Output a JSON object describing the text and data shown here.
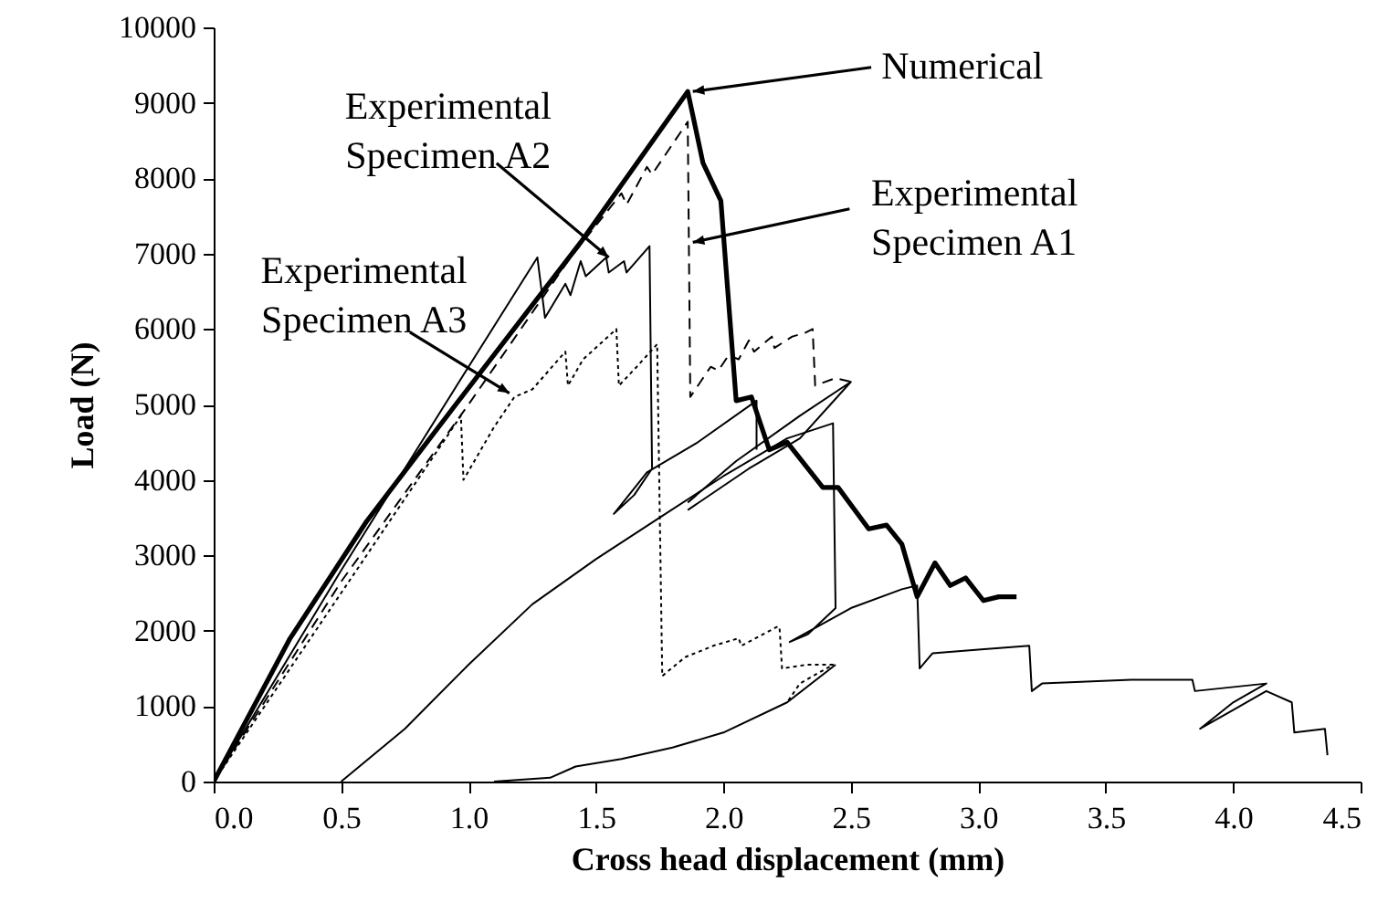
{
  "chart_data": {
    "type": "line",
    "xlabel": "Cross head displacement (mm)",
    "ylabel": "Load (N)",
    "xlim": [
      0,
      4.5
    ],
    "ylim": [
      0,
      10000
    ],
    "xticks": [
      {
        "value": 0,
        "label": "0.0"
      },
      {
        "value": 0.5,
        "label": "0.5"
      },
      {
        "value": 1,
        "label": "1.0"
      },
      {
        "value": 1.5,
        "label": "1.5"
      },
      {
        "value": 2,
        "label": "2.0"
      },
      {
        "value": 2.5,
        "label": "2.5"
      },
      {
        "value": 3,
        "label": "3.0"
      },
      {
        "value": 3.5,
        "label": "3.5"
      },
      {
        "value": 4,
        "label": "4.0"
      },
      {
        "value": 4.5,
        "label": "4.5"
      }
    ],
    "yticks": [
      0,
      1000,
      2000,
      3000,
      4000,
      5000,
      6000,
      7000,
      8000,
      9000,
      10000
    ],
    "grid": false,
    "marker": "none",
    "series": [
      {
        "color": "#000000",
        "line_style": "solid",
        "x": [
          0,
          0.3,
          0.6,
          0.95,
          1.44,
          1.86,
          1.92,
          1.99,
          2.05,
          2.11,
          2.18,
          2.25,
          2.39,
          2.45,
          2.57,
          2.64,
          2.7,
          2.76,
          2.83,
          2.89,
          2.95,
          3.02,
          3.08,
          3.15
        ],
        "values": [
          0,
          1900,
          3450,
          5000,
          7150,
          9150,
          8200,
          7700,
          5050,
          5100,
          4400,
          4500,
          3900,
          3900,
          3350,
          3400,
          3150,
          2450,
          2900,
          2600,
          2700,
          2400,
          2450,
          2450
        ]
      },
      {
        "color": "#000000",
        "line_style": "dashed",
        "x": [
          0,
          0.5,
          1.0,
          1.4,
          1.6,
          1.62,
          1.7,
          1.72,
          1.86,
          1.87,
          1.95,
          1.98,
          2.02,
          2.06,
          2.1,
          2.12,
          2.19,
          2.2,
          2.27,
          2.32,
          2.35,
          2.36,
          2.44,
          2.5
        ],
        "values": [
          0,
          2650,
          5000,
          6950,
          7800,
          7650,
          8150,
          8050,
          8750,
          5100,
          5500,
          5450,
          5650,
          5600,
          5850,
          5700,
          5900,
          5750,
          5900,
          5950,
          6000,
          5250,
          5350,
          5300
        ]
      },
      {
        "color": "#000000",
        "line_style": "solid",
        "x": [
          1.86,
          2.1,
          2.3,
          2.5,
          2.3,
          2.05,
          1.86
        ],
        "values": [
          3600,
          4150,
          4550,
          5300,
          4850,
          4250,
          3700
        ]
      },
      {
        "color": "#000000",
        "line_style": "solid",
        "x": [
          0,
          0.5,
          1.0,
          1.27,
          1.3,
          1.38,
          1.4,
          1.44,
          1.46,
          1.54,
          1.55,
          1.61,
          1.62,
          1.71,
          1.72,
          1.65,
          1.57,
          1.7,
          1.9,
          2.13,
          2.13
        ],
        "values": [
          0,
          2800,
          5500,
          6950,
          6150,
          6600,
          6450,
          6900,
          6700,
          6950,
          6750,
          6900,
          6750,
          7100,
          4150,
          3800,
          3550,
          4100,
          4500,
          5050,
          4400
        ]
      },
      {
        "color": "#000000",
        "line_style": "solid",
        "x": [
          0.5,
          0.75,
          1.0,
          1.25,
          1.5,
          1.75,
          2.0,
          2.25,
          2.43,
          2.44,
          2.33,
          2.26,
          2.5,
          2.7,
          2.76,
          2.77,
          2.82,
          3.0,
          3.2,
          3.21,
          3.25,
          3.6,
          3.84,
          3.85,
          4.13,
          4.0,
          3.87,
          4.0,
          4.13,
          4.23,
          4.24,
          4.36,
          4.37
        ],
        "values": [
          0,
          700,
          1550,
          2350,
          2950,
          3500,
          4050,
          4550,
          4750,
          2300,
          1950,
          1850,
          2300,
          2550,
          2600,
          1500,
          1700,
          1750,
          1800,
          1200,
          1300,
          1350,
          1350,
          1200,
          1300,
          1050,
          700,
          950,
          1200,
          1050,
          650,
          700,
          350
        ]
      },
      {
        "color": "#000000",
        "line_style": "dotted",
        "x": [
          0,
          0.5,
          0.97,
          0.98,
          1.1,
          1.18,
          1.25,
          1.38,
          1.39,
          1.45,
          1.58,
          1.59,
          1.66,
          1.74,
          1.76,
          1.85,
          1.96,
          2.06,
          2.07,
          2.21,
          2.22,
          2.23,
          2.33,
          2.43,
          2.3,
          2.25
        ],
        "values": [
          0,
          2500,
          4850,
          4000,
          4700,
          5100,
          5200,
          5700,
          5250,
          5600,
          6000,
          5250,
          5500,
          5800,
          1400,
          1650,
          1800,
          1900,
          1800,
          2050,
          2050,
          1500,
          1550,
          1550,
          1300,
          1050
        ]
      },
      {
        "color": "#000000",
        "line_style": "solid",
        "x": [
          1.1,
          1.32,
          1.42,
          1.6,
          1.8,
          2.0,
          2.25,
          2.44
        ],
        "values": [
          0,
          50,
          200,
          300,
          450,
          650,
          1050,
          1550
        ]
      }
    ],
    "annotations": [
      {
        "text": "Numerical",
        "x": 1.88,
        "y": 9150
      },
      {
        "text": "Experimental Specimen A1",
        "x": 1.88,
        "y": 7150
      },
      {
        "text": "Experimental Specimen A2",
        "x": 1.55,
        "y": 6950
      },
      {
        "text": "Experimental Specimen A3",
        "x": 1.16,
        "y": 5150
      }
    ]
  }
}
